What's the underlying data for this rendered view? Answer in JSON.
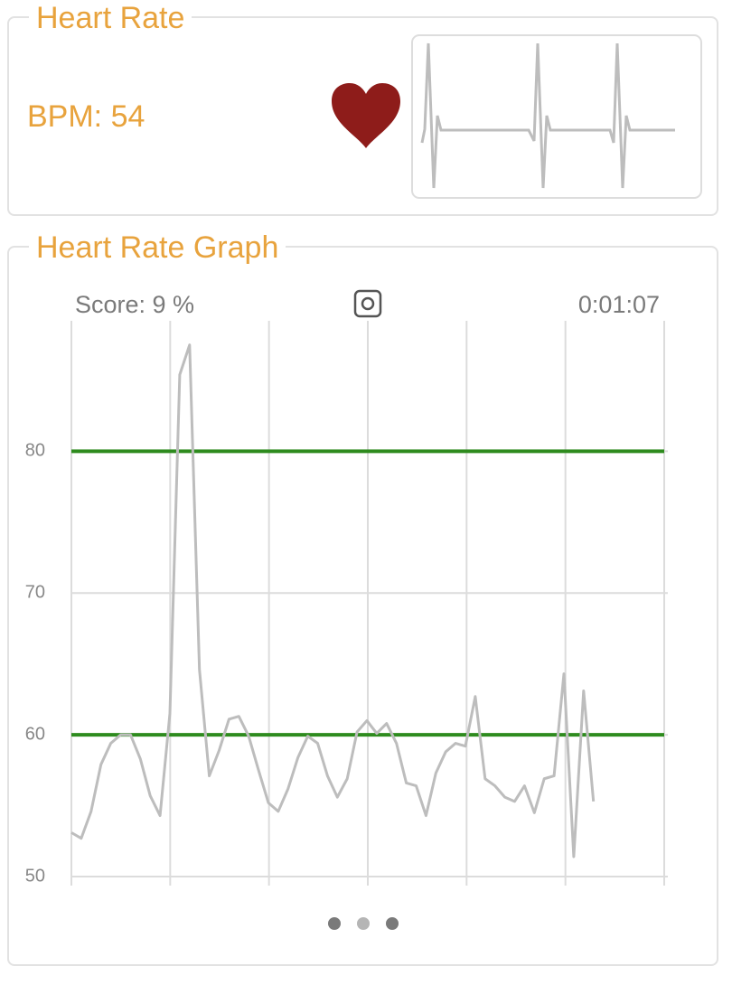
{
  "heart_rate_card": {
    "title": "Heart Rate",
    "bpm": "BPM: 54"
  },
  "graph_card": {
    "title": "Heart Rate Graph",
    "score": "Score: 9 %",
    "elapsed": "0:01:07"
  },
  "chart_data": {
    "type": "line",
    "values": [
      53.1,
      52.7,
      54.6,
      57.9,
      59.4,
      60.0,
      60.0,
      58.3,
      55.7,
      54.3,
      61.5,
      85.4,
      87.5,
      64.6,
      57.1,
      58.9,
      61.1,
      61.3,
      59.9,
      57.5,
      55.2,
      54.6,
      56.2,
      58.4,
      59.9,
      59.4,
      57.1,
      55.6,
      56.9,
      60.2,
      61.0,
      60.1,
      60.8,
      59.4,
      56.6,
      56.4,
      54.3,
      57.3,
      58.8,
      59.4,
      59.2,
      62.7,
      56.9,
      56.4,
      55.6,
      55.3,
      56.4,
      54.5,
      56.9,
      57.1,
      64.3,
      51.4,
      63.1,
      55.3
    ],
    "color": "#bdbdbd",
    "ylim": [
      50,
      89.2
    ],
    "yticks": [
      50,
      60,
      70,
      80
    ],
    "grid": true,
    "thresholds": [
      60,
      80
    ],
    "threshold_color": "#2e8b1e"
  }
}
